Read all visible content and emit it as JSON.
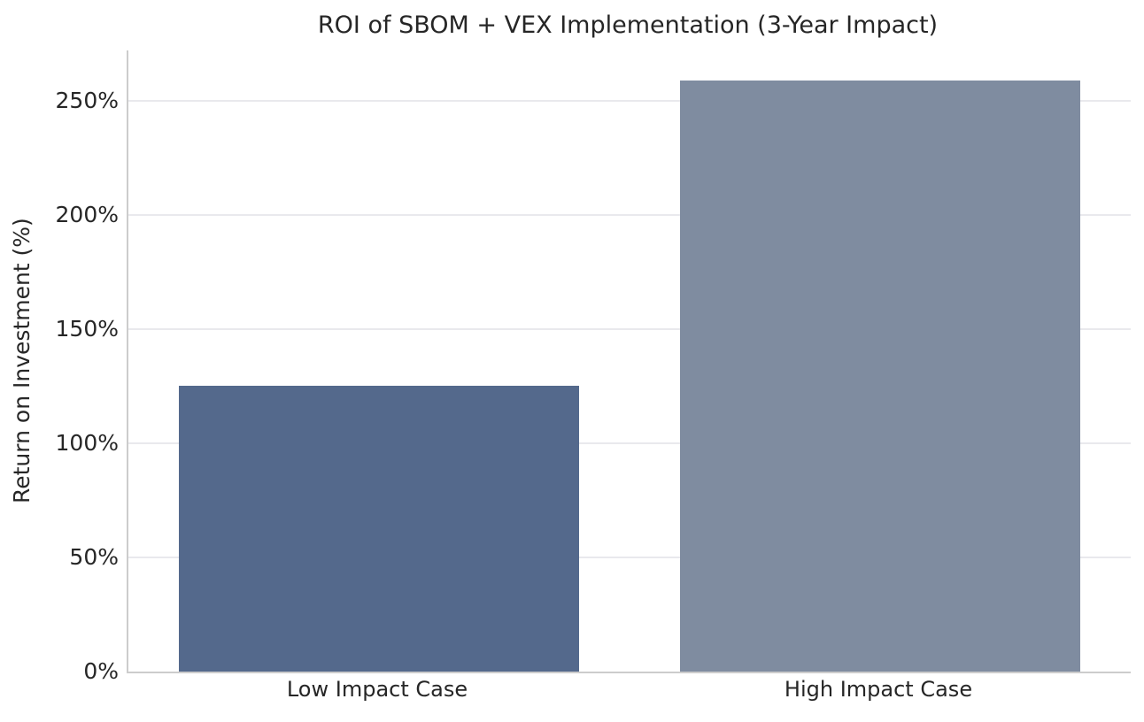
{
  "chart_data": {
    "type": "bar",
    "title": "ROI of SBOM + VEX Implementation (3-Year Impact)",
    "xlabel": "",
    "ylabel": "Return on Investment (%)",
    "categories": [
      "Low Impact Case",
      "High Impact Case"
    ],
    "values": [
      125,
      259
    ],
    "value_unit": "%",
    "yticks": [
      0,
      50,
      100,
      150,
      200,
      250
    ],
    "ytick_labels": [
      "0%",
      "50%",
      "100%",
      "150%",
      "200%",
      "250%"
    ],
    "ylim": [
      0,
      272
    ],
    "grid": "horizontal",
    "legend": "none",
    "bar_colors": [
      "#54698C",
      "#7F8CA0"
    ],
    "background_color": "#ffffff",
    "gridline_color": "#e9e9ed",
    "spine_color": "#cccccc",
    "text_color": "#262626"
  }
}
